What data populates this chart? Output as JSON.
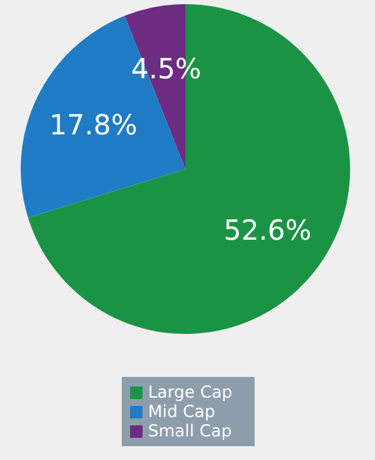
{
  "chart_data": {
    "type": "pie",
    "categories": [
      "Large Cap",
      "Mid Cap",
      "Small Cap"
    ],
    "values": [
      52.6,
      17.8,
      4.5
    ],
    "colors": [
      "#1a9444",
      "#1f7cc4",
      "#6b2c82"
    ],
    "value_labels": [
      "52.6%",
      "17.8%",
      "4.5%"
    ],
    "legend": "bottom"
  }
}
